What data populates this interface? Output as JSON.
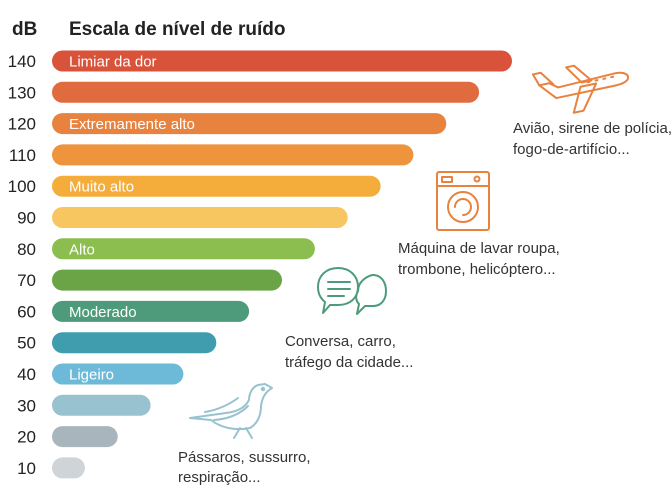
{
  "chart_data": {
    "type": "bar",
    "orientation": "horizontal",
    "title": "Escala de nível de ruído",
    "unit_label": "dB",
    "categories": [
      140,
      130,
      120,
      110,
      100,
      90,
      80,
      70,
      60,
      50,
      40,
      30,
      20,
      10
    ],
    "values": [
      140,
      130,
      120,
      110,
      100,
      90,
      80,
      70,
      60,
      50,
      40,
      30,
      20,
      10
    ],
    "bar_labels": {
      "140": "Limiar da dor",
      "120": "Extremamente alto",
      "100": "Muito alto",
      "80": "Alto",
      "60": "Moderado",
      "40": "Ligeiro"
    },
    "colors": [
      "#d9523a",
      "#e06b3f",
      "#e8823f",
      "#ee943c",
      "#f4ad3b",
      "#f8c661",
      "#8bbd4f",
      "#6ba347",
      "#4e9b7b",
      "#3f9dae",
      "#6dbad8",
      "#98c2cf",
      "#a9b5bd",
      "#cfd4d8"
    ],
    "annotations": [
      {
        "icon": "airplane-icon",
        "lines": [
          "Avião, sirene de polícia,",
          "fogo-de-artifício..."
        ],
        "level": 130
      },
      {
        "icon": "washing-machine-icon",
        "lines": [
          "Máquina de lavar roupa,",
          "trombone, helicóptero..."
        ],
        "level": 90
      },
      {
        "icon": "chat-bubbles-icon",
        "lines": [
          "Conversa, carro,",
          "tráfego da cidade..."
        ],
        "level": 60
      },
      {
        "icon": "bird-icon",
        "lines": [
          "Pássaros, sussurro,",
          "respiração..."
        ],
        "level": 20
      }
    ],
    "icon_color": "#e8823f",
    "chat_icon_color": "#4e9b7b",
    "bird_icon_color": "#98c2cf"
  }
}
